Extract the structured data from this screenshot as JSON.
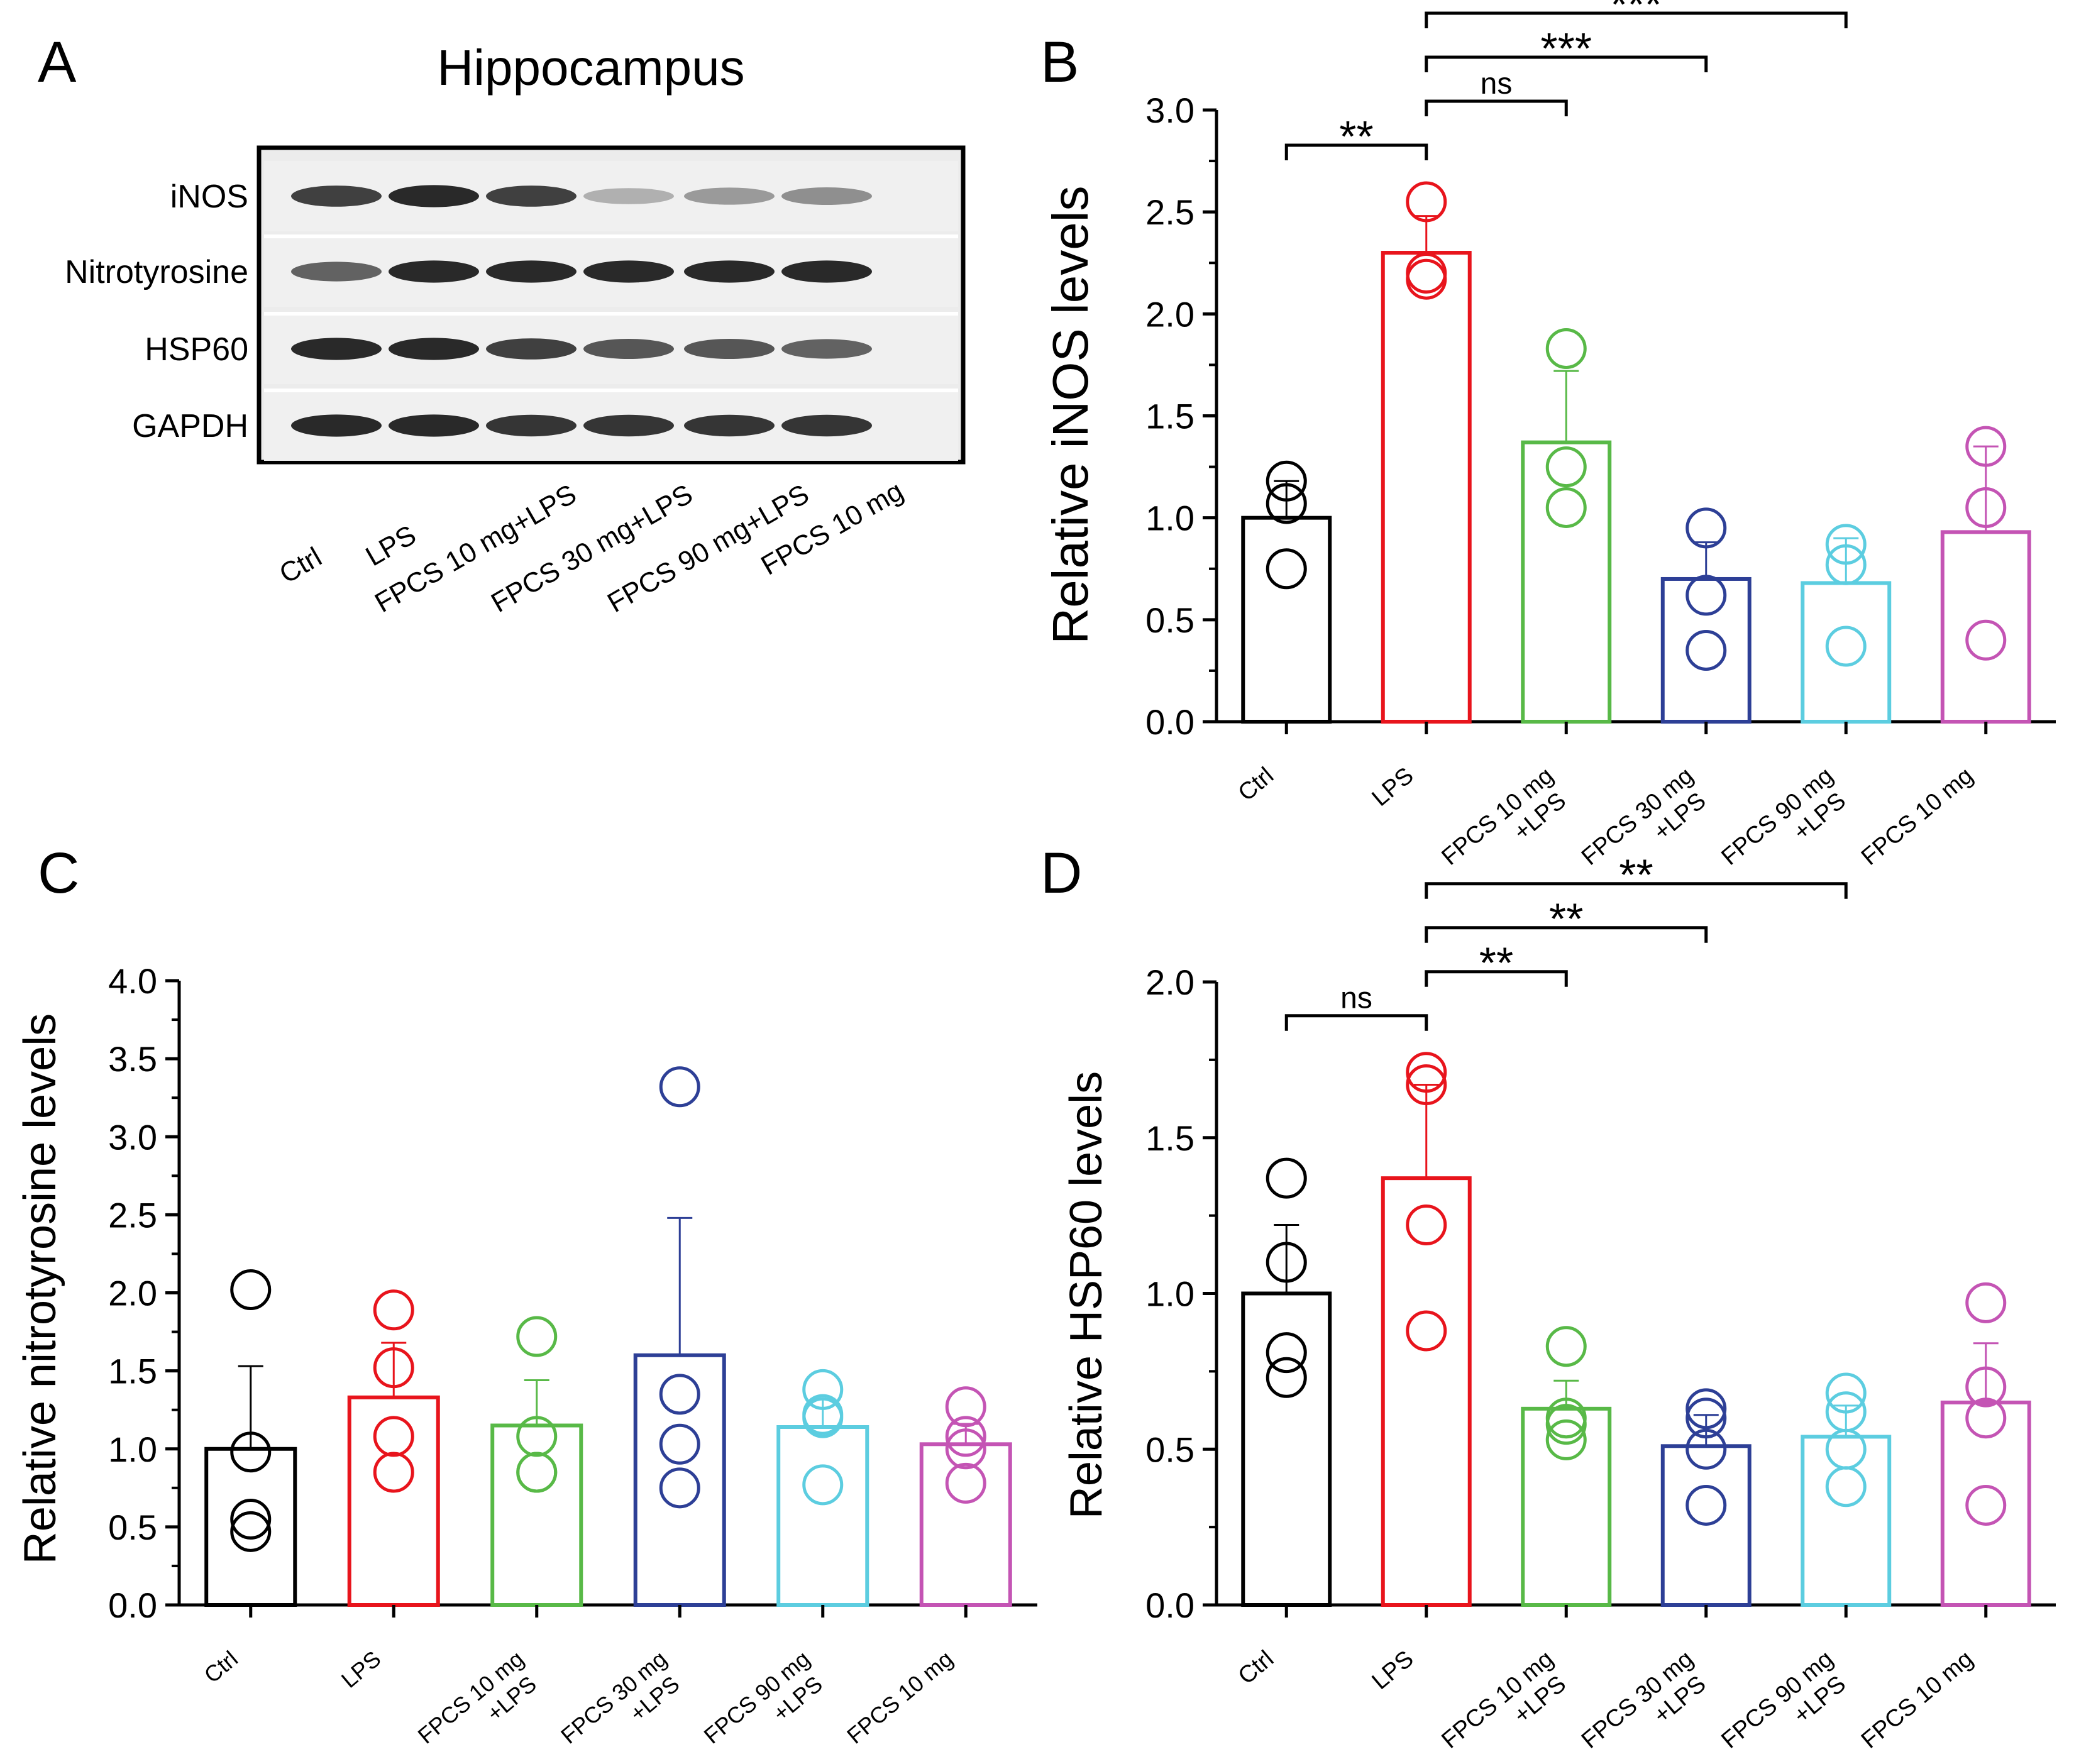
{
  "figure": {
    "panel_labels": [
      "A",
      "B",
      "C",
      "D"
    ],
    "blot": {
      "title": "Hippocampus",
      "rows": [
        "iNOS",
        "Nitrotyrosine",
        "HSP60",
        "GAPDH"
      ],
      "lanes": [
        "Ctrl",
        "LPS",
        "FPCS 10 mg+LPS",
        "FPCS 30 mg+LPS",
        "FPCS 90 mg+LPS",
        "FPCS 10 mg"
      ],
      "band_intensity": [
        [
          0.85,
          0.95,
          0.85,
          0.35,
          0.45,
          0.5
        ],
        [
          0.7,
          0.95,
          0.95,
          0.95,
          0.95,
          0.95
        ],
        [
          0.95,
          0.95,
          0.85,
          0.75,
          0.75,
          0.7
        ],
        [
          0.95,
          0.95,
          0.9,
          0.9,
          0.9,
          0.9
        ]
      ]
    }
  },
  "colors": [
    "#000000",
    "#e8141c",
    "#58b947",
    "#2d3f96",
    "#5ccde0",
    "#c454b4"
  ],
  "chart_data": [
    {
      "panel": "B",
      "type": "bar",
      "categories": [
        [
          "Ctrl"
        ],
        [
          "LPS"
        ],
        [
          "FPCS 10 mg",
          "+LPS"
        ],
        [
          "FPCS 30 mg",
          "+LPS"
        ],
        [
          "FPCS 90 mg",
          "+LPS"
        ],
        [
          "FPCS 10 mg"
        ]
      ],
      "values": [
        1.0,
        2.3,
        1.37,
        0.7,
        0.68,
        0.93
      ],
      "errors": [
        0.18,
        0.18,
        0.35,
        0.18,
        0.22,
        0.42
      ],
      "points": [
        [
          1.18,
          1.07,
          0.75
        ],
        [
          2.55,
          2.2,
          2.17
        ],
        [
          1.83,
          1.25,
          1.05
        ],
        [
          0.95,
          0.62,
          0.35
        ],
        [
          0.87,
          0.77,
          0.37
        ],
        [
          1.35,
          1.05,
          0.4
        ]
      ],
      "ylabel": "Relative iNOS levels",
      "ylim": [
        0,
        3
      ],
      "yticks": [
        "0.0",
        "0.5",
        "1.0",
        "1.5",
        "2.0",
        "2.5",
        "3.0"
      ],
      "comparisons": [
        {
          "from": 0,
          "to": 1,
          "label": "**"
        },
        {
          "from": 1,
          "to": 2,
          "label": "ns"
        },
        {
          "from": 1,
          "to": 3,
          "label": "***"
        },
        {
          "from": 1,
          "to": 4,
          "label": "***"
        }
      ]
    },
    {
      "panel": "C",
      "type": "bar",
      "categories": [
        [
          "Ctrl"
        ],
        [
          "LPS"
        ],
        [
          "FPCS 10 mg",
          "+LPS"
        ],
        [
          "FPCS 30 mg",
          "+LPS"
        ],
        [
          "FPCS 90 mg",
          "+LPS"
        ],
        [
          "FPCS 10 mg"
        ]
      ],
      "values": [
        1.0,
        1.33,
        1.15,
        1.6,
        1.14,
        1.03
      ],
      "errors": [
        0.53,
        0.35,
        0.29,
        0.88,
        0.18,
        0.13
      ],
      "points": [
        [
          2.02,
          0.98,
          0.55,
          0.47
        ],
        [
          1.89,
          1.52,
          1.08,
          0.85
        ],
        [
          1.72,
          1.08,
          0.85,
          0.85
        ],
        [
          3.32,
          1.35,
          1.03,
          0.75
        ],
        [
          1.38,
          1.2,
          1.22,
          0.77
        ],
        [
          1.27,
          1.08,
          1.0,
          0.78
        ]
      ],
      "ylabel": "Relative nitrotyrosine levels",
      "ylim": [
        0,
        4
      ],
      "yticks": [
        "0.0",
        "0.5",
        "1.0",
        "1.5",
        "2.0",
        "2.5",
        "3.0",
        "3.5",
        "4.0"
      ],
      "comparisons": []
    },
    {
      "panel": "D",
      "type": "bar",
      "categories": [
        [
          "Ctrl"
        ],
        [
          "LPS"
        ],
        [
          "FPCS 10 mg",
          "+LPS"
        ],
        [
          "FPCS 30 mg",
          "+LPS"
        ],
        [
          "FPCS 90 mg",
          "+LPS"
        ],
        [
          "FPCS 10 mg"
        ]
      ],
      "values": [
        1.0,
        1.37,
        0.63,
        0.51,
        0.54,
        0.65
      ],
      "errors": [
        0.22,
        0.3,
        0.09,
        0.1,
        0.1,
        0.19
      ],
      "points": [
        [
          1.37,
          1.1,
          0.81,
          0.73
        ],
        [
          1.71,
          1.67,
          1.22,
          0.88
        ],
        [
          0.83,
          0.6,
          0.58,
          0.53
        ],
        [
          0.63,
          0.6,
          0.5,
          0.32
        ],
        [
          0.68,
          0.62,
          0.5,
          0.38
        ],
        [
          0.97,
          0.7,
          0.6,
          0.32
        ]
      ],
      "ylabel": "Relative HSP60 levels",
      "ylim": [
        0,
        2
      ],
      "yticks": [
        "0.0",
        "0.5",
        "1.0",
        "1.5",
        "2.0"
      ],
      "comparisons": [
        {
          "from": 0,
          "to": 1,
          "label": "ns"
        },
        {
          "from": 1,
          "to": 2,
          "label": "**"
        },
        {
          "from": 1,
          "to": 3,
          "label": "**"
        },
        {
          "from": 1,
          "to": 4,
          "label": "**"
        }
      ]
    }
  ]
}
